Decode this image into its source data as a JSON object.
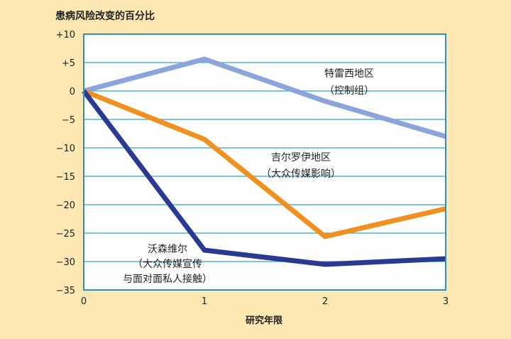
{
  "chart_data": {
    "type": "line",
    "ylabel": "患病风险改变的百分比",
    "xlabel": "研究年限",
    "x": [
      0,
      1,
      2,
      3
    ],
    "xticks": [
      "0",
      "1",
      "2",
      "3"
    ],
    "yticks": [
      "+10",
      "+5",
      "0",
      "−5",
      "−10",
      "−15",
      "−20",
      "−25",
      "−30",
      "−35"
    ],
    "ylim": [
      -35,
      10
    ],
    "xlim": [
      0,
      3
    ],
    "grid": "horizontal",
    "colors": {
      "background": "#fde7b3",
      "plot_background": "#ffffff",
      "grid": "#2aa6c9",
      "frame": "#2a8fc1"
    },
    "series": [
      {
        "values": [
          0,
          5.6,
          -1.8,
          -8
        ],
        "color": "#8ba4dc",
        "label_lines": [
          "特雷西地区",
          "（控制组）"
        ]
      },
      {
        "values": [
          0,
          -8.5,
          -25.6,
          -20.7
        ],
        "color": "#f0901e",
        "label_lines": [
          "吉尔罗伊地区",
          "（大众传媒影响）"
        ]
      },
      {
        "values": [
          0,
          -28,
          -30.5,
          -29.5
        ],
        "color": "#2a3a92",
        "label_lines": [
          "沃森维尔",
          "（大众传媒宣传",
          "与面对面私人接触）"
        ]
      }
    ]
  }
}
